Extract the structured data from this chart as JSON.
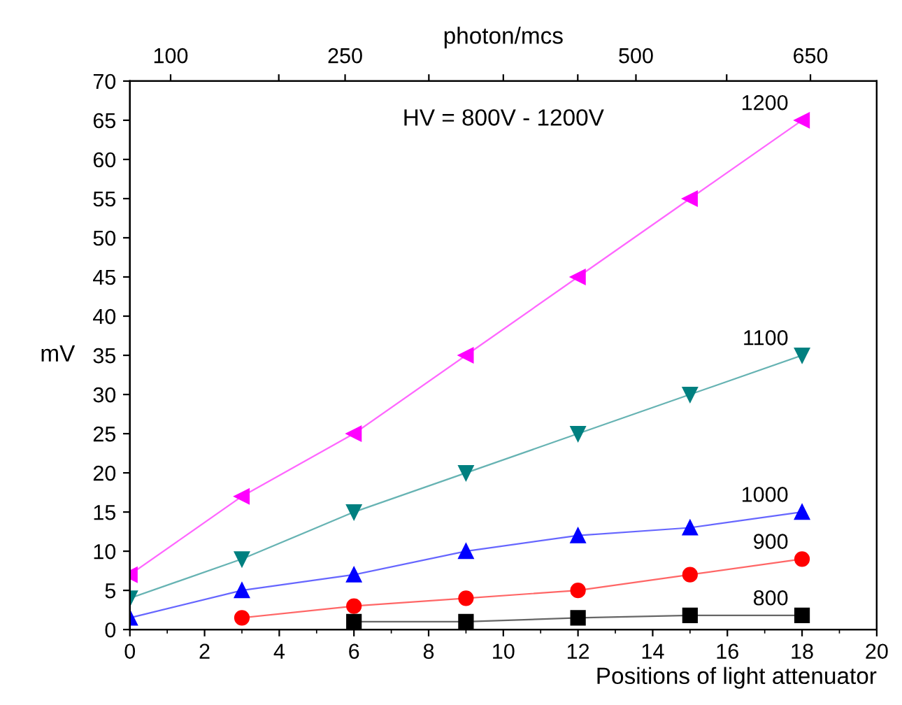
{
  "chart_data": {
    "type": "line",
    "xlabel": "Positions of light attenuator",
    "ylabel": "mV",
    "x2label": "photon/mcs",
    "xlim": [
      0,
      20
    ],
    "xticks": [
      0,
      2,
      4,
      6,
      8,
      10,
      12,
      14,
      16,
      18,
      20
    ],
    "ylim": [
      0,
      70
    ],
    "yticks": [
      0,
      5,
      10,
      15,
      20,
      25,
      30,
      35,
      40,
      45,
      50,
      55,
      60,
      65,
      70
    ],
    "x2lim": [
      65,
      707
    ],
    "x2ticks": [
      100,
      {
        "value": 193,
        "label": null
      },
      250,
      {
        "value": 322,
        "label": null
      },
      {
        "value": 386,
        "label": null
      },
      {
        "value": 450,
        "label": null
      },
      500,
      {
        "value": 578,
        "label": null
      },
      650
    ],
    "annotations": [
      "HV = 800V - 1200V"
    ],
    "grid": false,
    "legend": false,
    "line_style": "solid",
    "series": [
      {
        "name": "1200",
        "color": "#ff00ff",
        "marker": "triangle-left",
        "x": [
          0,
          3,
          6,
          9,
          12,
          15,
          18
        ],
        "values": [
          7,
          17,
          25,
          35,
          45,
          55,
          65
        ]
      },
      {
        "name": "1100",
        "color": "#008080",
        "marker": "triangle-down",
        "x": [
          0,
          3,
          6,
          9,
          12,
          15,
          18
        ],
        "values": [
          4,
          9,
          15,
          20,
          25,
          30,
          35
        ]
      },
      {
        "name": "1000",
        "color": "#0000ff",
        "marker": "triangle",
        "x": [
          0,
          3,
          6,
          9,
          12,
          15,
          18
        ],
        "values": [
          1.5,
          5,
          7,
          10,
          12,
          13,
          15
        ]
      },
      {
        "name": "900",
        "color": "#ff0000",
        "marker": "circle",
        "x": [
          3,
          6,
          9,
          12,
          15,
          18
        ],
        "values": [
          1.5,
          3,
          4,
          5,
          7,
          9
        ]
      },
      {
        "name": "800",
        "color": "#000000",
        "marker": "square",
        "x": [
          6,
          9,
          12,
          15,
          18
        ],
        "values": [
          1,
          1,
          1.5,
          1.8,
          1.8
        ]
      }
    ]
  }
}
